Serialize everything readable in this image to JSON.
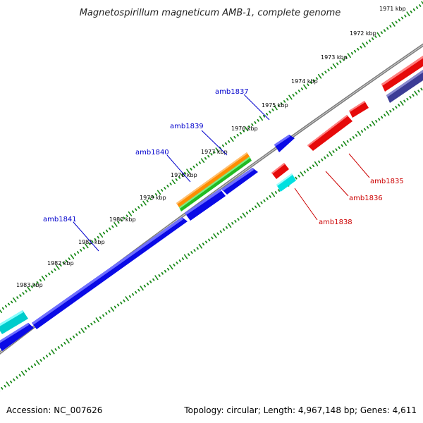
{
  "title": "Magnetospirillum magneticum AMB-1, complete genome",
  "footer": {
    "accession": "Accession: NC_007626",
    "summary": "Topology: circular; Length: 4,967,148 bp; Genes: 4,611"
  },
  "colors": {
    "backbone": "#7a7a7a",
    "tick": "#1a8a1a",
    "forward_label": "#0000cc",
    "reverse_label": "#cc0000",
    "gene_blue": "#0a0ae6",
    "gene_red": "#e60a0a",
    "gene_cyan": "#00e0e0",
    "gene_navy": "#3c3c96",
    "gene_orange": "#ff8c00",
    "gene_green": "#22bb22"
  },
  "scale": {
    "ticks": [
      {
        "label": "1971 kbp"
      },
      {
        "label": "1972 kbp"
      },
      {
        "label": "1973 kbp"
      },
      {
        "label": "1974 kbp"
      },
      {
        "label": "1975 kbp"
      },
      {
        "label": "1976 kbp"
      },
      {
        "label": "1977 kbp"
      },
      {
        "label": "1978 kbp"
      },
      {
        "label": "1979 kbp"
      },
      {
        "label": "1980 kbp"
      },
      {
        "label": "1981 kbp"
      },
      {
        "label": "1982 kbp"
      },
      {
        "label": "1983 kbp"
      }
    ]
  },
  "gene_labels": {
    "forward": [
      {
        "name": "amb1837"
      },
      {
        "name": "amb1839"
      },
      {
        "name": "amb1840"
      },
      {
        "name": "amb1841"
      }
    ],
    "reverse": [
      {
        "name": "amb1835"
      },
      {
        "name": "amb1836"
      },
      {
        "name": "amb1838"
      }
    ]
  }
}
